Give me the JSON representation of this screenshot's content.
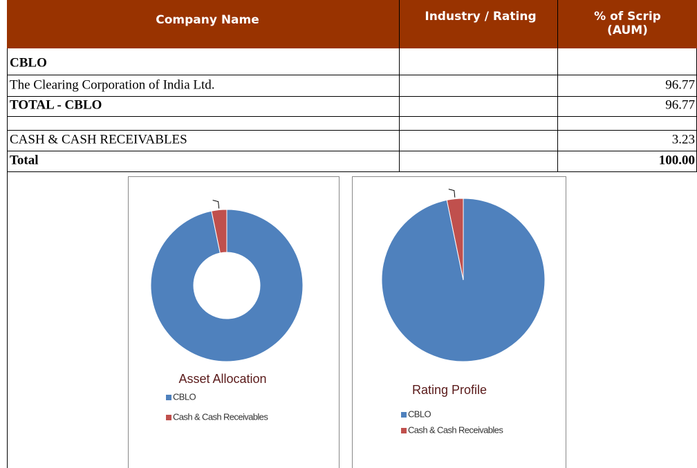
{
  "table": {
    "header": [
      "Company Name",
      "Industry / Rating",
      "% of Scrip (AUM)"
    ],
    "rows": [
      {
        "name": "CBLO"
      },
      {
        "name": "The Clearing Corporation of India Ltd.",
        "value": "96.77"
      },
      {
        "name": "TOTAL -  CBLO",
        "value": "96.77"
      },
      {
        "name": "CASH & CASH RECEIVABLES",
        "value": "3.23"
      },
      {
        "name": "Total",
        "value": "100.00"
      }
    ]
  },
  "charts": [
    {
      "type": "donut",
      "title": "Asset Allocation",
      "categories": [
        "CBLO",
        "Cash & Cash Receivables"
      ],
      "values": [
        96.77,
        3.23
      ],
      "colors": [
        "#4f81bd",
        "#c0504d"
      ]
    },
    {
      "type": "pie",
      "title": "Rating Profile",
      "categories": [
        "CBLO",
        "Cash & Cash Receivables"
      ],
      "values": [
        96.77,
        3.23
      ],
      "colors": [
        "#4f81bd",
        "#c0504d"
      ]
    }
  ]
}
